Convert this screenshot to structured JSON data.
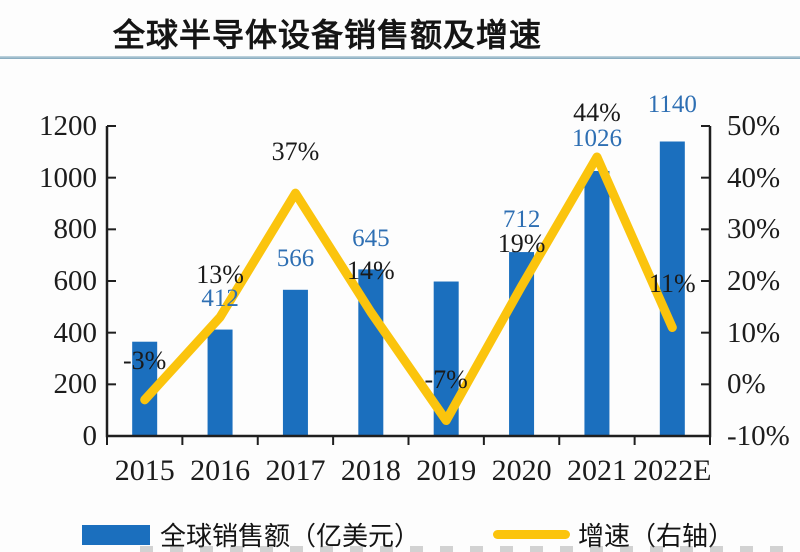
{
  "header": {
    "title": "全球半导体设备销售额及增速"
  },
  "legend": [
    {
      "type": "bar",
      "label": "全球销售额（亿美元）"
    },
    {
      "type": "line",
      "label": "增速（右轴）"
    }
  ],
  "colors": {
    "bar": "#1B6FBE",
    "line": "#FBC40D",
    "value_label": "#2E6FB3",
    "pct_label": "#1A1A1A",
    "axis": "#1F1F1F",
    "underline": "#7FA6BB",
    "background": "#FDFDFD"
  },
  "chart_data": {
    "type": "bar",
    "title": "全球半导体设备销售额及增速",
    "categories": [
      "2015",
      "2016",
      "2017",
      "2018",
      "2019",
      "2020",
      "2021",
      "2022E"
    ],
    "series": [
      {
        "name": "全球销售额（亿美元）",
        "type": "bar",
        "axis": "left",
        "values": [
          365,
          412,
          566,
          645,
          598,
          712,
          1026,
          1140
        ],
        "value_labels": [
          null,
          "412",
          "566",
          "645",
          null,
          "712",
          "1026",
          "1140"
        ]
      },
      {
        "name": "增速（右轴）",
        "type": "line",
        "axis": "right",
        "values": [
          -3,
          13,
          37,
          14,
          -7,
          19,
          44,
          11
        ],
        "value_labels": [
          "-3%",
          "13%",
          "37%",
          "14%",
          "-7%",
          "19%",
          "44%",
          "11%"
        ]
      }
    ],
    "left_axis": {
      "min": 0,
      "max": 1200,
      "ticks": [
        "1200",
        "1000",
        "800",
        "600",
        "400",
        "200",
        "0"
      ]
    },
    "right_axis": {
      "min": -10,
      "max": 50,
      "ticks": [
        "50%",
        "40%",
        "30%",
        "20%",
        "10%",
        "0%",
        "-10%"
      ]
    },
    "grid": false,
    "legend_position": "bottom"
  }
}
